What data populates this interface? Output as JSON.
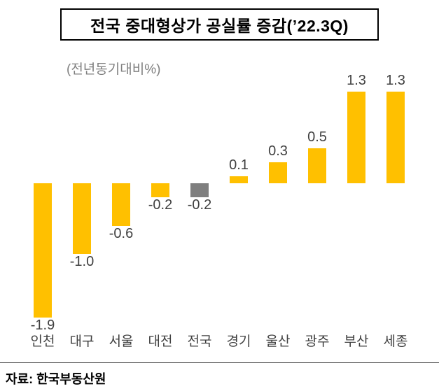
{
  "title": "전국 중대형상가 공실률 증감(’22.3Q)",
  "unit_label": "(전년동기대비%)",
  "source": "자료: 한국부동산원",
  "colors": {
    "bar_primary": "#FFC000",
    "bar_highlight": "#7F7F7F",
    "label_text": "#404040"
  },
  "chart_data": {
    "type": "bar",
    "title": "전국 중대형상가 공실률 증감(’22.3Q)",
    "ylabel": "(전년동기대비%)",
    "categories": [
      "인천",
      "대구",
      "서울",
      "대전",
      "전국",
      "경기",
      "울산",
      "광주",
      "부산",
      "세종"
    ],
    "values": [
      -1.9,
      -1.0,
      -0.6,
      -0.2,
      -0.2,
      0.1,
      0.3,
      0.5,
      1.3,
      1.3
    ],
    "bar_colors": [
      "#FFC000",
      "#FFC000",
      "#FFC000",
      "#FFC000",
      "#7F7F7F",
      "#FFC000",
      "#FFC000",
      "#FFC000",
      "#FFC000",
      "#FFC000"
    ],
    "data_labels": [
      "-1.9",
      "-1.0",
      "-0.6",
      "-0.2",
      "-0.2",
      "0.1",
      "0.3",
      "0.5",
      "1.3",
      "1.3"
    ],
    "ylim": [
      -2.2,
      1.6
    ],
    "grid": false,
    "legend": false,
    "baseline": 0,
    "source": "자료: 한국부동산원"
  }
}
